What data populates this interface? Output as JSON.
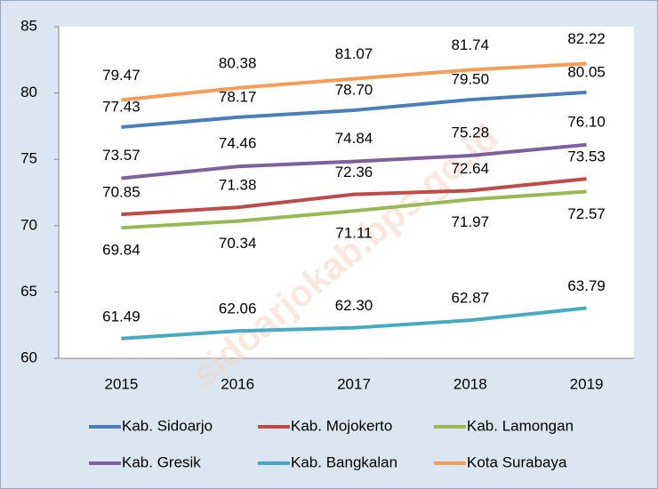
{
  "chart_data": {
    "type": "line",
    "categories": [
      "2015",
      "2016",
      "2017",
      "2018",
      "2019"
    ],
    "series": [
      {
        "name": "Kab. Sidoarjo",
        "color": "#4a7ebb",
        "values": [
          77.43,
          78.17,
          78.7,
          79.5,
          80.05
        ],
        "value_labels": [
          "77.43",
          "78.17",
          "78.70",
          "79.50",
          "80.05"
        ]
      },
      {
        "name": "Kab. Mojokerto",
        "color": "#be4b48",
        "values": [
          70.85,
          71.38,
          72.36,
          72.64,
          73.53
        ],
        "value_labels": [
          "70.85",
          "71.38",
          "72.36",
          "72.64",
          "73.53"
        ]
      },
      {
        "name": "Kab. Lamongan",
        "color": "#98b954",
        "values": [
          69.84,
          70.34,
          71.11,
          71.97,
          72.57
        ],
        "value_labels": [
          "69.84",
          "70.34",
          "71.11",
          "71.97",
          "72.57"
        ]
      },
      {
        "name": "Kab. Gresik",
        "color": "#7d60a0",
        "values": [
          73.57,
          74.46,
          74.84,
          75.28,
          76.1
        ],
        "value_labels": [
          "73.57",
          "74.46",
          "74.84",
          "75.28",
          "76.10"
        ]
      },
      {
        "name": "Kab. Bangkalan",
        "color": "#46aac5",
        "values": [
          61.49,
          62.06,
          62.3,
          62.87,
          63.79
        ],
        "value_labels": [
          "61.49",
          "62.06",
          "62.30",
          "62.87",
          "63.79"
        ]
      },
      {
        "name": "Kota Surabaya",
        "color": "#f59d56",
        "values": [
          79.47,
          80.38,
          81.07,
          81.74,
          82.22
        ],
        "value_labels": [
          "79.47",
          "80.38",
          "81.07",
          "81.74",
          "82.22"
        ]
      }
    ],
    "ylim": [
      60,
      85
    ],
    "yticks": [
      60,
      65,
      70,
      75,
      80,
      85
    ],
    "grid": false,
    "legend": "bottom",
    "watermark": "sidoarjokab.bps.go.id"
  }
}
